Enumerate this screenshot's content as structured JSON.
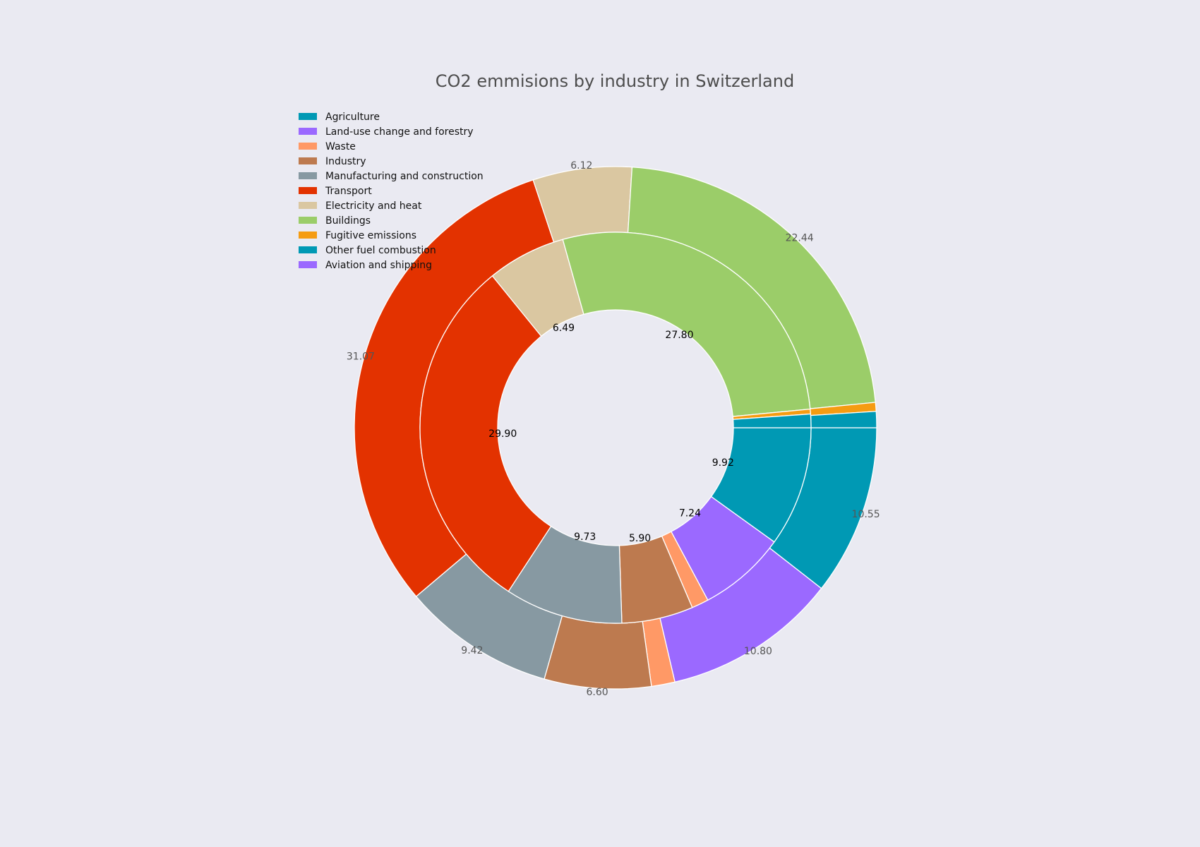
{
  "chart_data": {
    "type": "pie",
    "variant": "nested-donut",
    "title": "CO2 emmisions by industry in Switzerland",
    "legend_placement": "top-left",
    "categories": [
      "Agriculture",
      "Land-use change and forestry",
      "Waste",
      "Industry",
      "Manufacturing and construction",
      "Transport",
      "Electricity and heat",
      "Buildings",
      "Fugitive emissions",
      "Other fuel combustion",
      "Aviation and shipping"
    ],
    "colors": [
      "#0099b4",
      "#9b69ff",
      "#ff9966",
      "#bd7a4f",
      "#8799a2",
      "#e33200",
      "#dac7a1",
      "#9bcd69",
      "#f59c12",
      "#0099b4",
      "#9b69ff"
    ],
    "series": [
      {
        "ring": "outer",
        "values": [
          10.55,
          10.8,
          1.45,
          6.6,
          9.42,
          31.07,
          6.12,
          22.44,
          0.55,
          1.0,
          0.0
        ],
        "labels": [
          "10.55",
          "10.80",
          "",
          "6.60",
          "9.42",
          "31.07",
          "6.12",
          "22.44",
          "",
          "",
          ""
        ]
      },
      {
        "ring": "inner",
        "values": [
          9.92,
          7.24,
          1.4,
          5.9,
          9.73,
          29.9,
          6.49,
          27.8,
          0.4,
          1.12,
          0.0
        ],
        "labels": [
          "9.92",
          "7.24",
          "",
          "5.90",
          "9.73",
          "29.90",
          "6.49",
          "27.80",
          "",
          "",
          ""
        ]
      }
    ]
  }
}
